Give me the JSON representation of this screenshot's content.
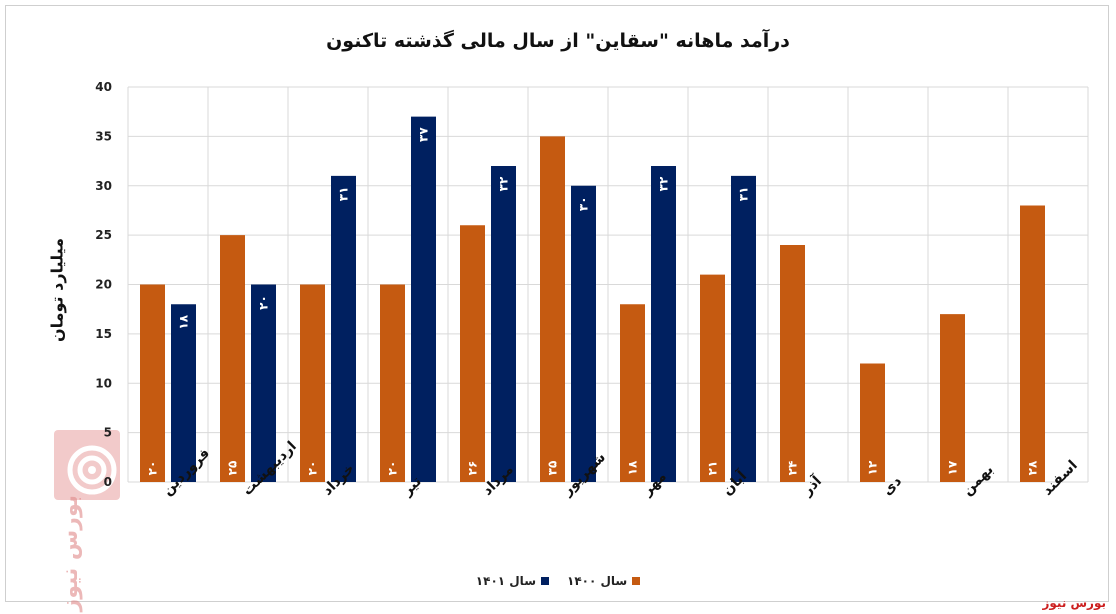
{
  "chart_data": {
    "type": "bar",
    "title": "درآمد ماهانه \"سقاین\" از سال مالی گذشته تاکنون",
    "ylabel": "میلیارد تومان",
    "ylim": [
      0,
      40
    ],
    "yticks": [
      "0",
      "5",
      "10",
      "15",
      "20",
      "25",
      "30",
      "35",
      "40"
    ],
    "categories": [
      "فروردین",
      "اردیبهشت",
      "خرداد",
      "تیر",
      "مرداد",
      "شهریور",
      "مهر",
      "آبان",
      "آذر",
      "دی",
      "بهمن",
      "اسفند"
    ],
    "series": [
      {
        "name": "سال ۱۴۰۰",
        "color": "#C55A11",
        "values": [
          20,
          25,
          20,
          20,
          26,
          35,
          18,
          21,
          24,
          12,
          17,
          28
        ],
        "labels": [
          "۲۰",
          "۲۵",
          "۲۰",
          "۲۰",
          "۲۶",
          "۳۵",
          "۱۸",
          "۲۱",
          "۲۴",
          "۱۲",
          "۱۷",
          "۲۸"
        ]
      },
      {
        "name": "سال ۱۴۰۱",
        "color": "#002060",
        "values": [
          18,
          20,
          31,
          37,
          32,
          30,
          32,
          31,
          null,
          null,
          null,
          null
        ],
        "labels": [
          "۱۸",
          "۲۰",
          "۳۱",
          "۳۷",
          "۳۲",
          "۳۰",
          "۳۲",
          "۳۱",
          "",
          "",
          "",
          ""
        ]
      }
    ],
    "grid": true,
    "legend_position": "bottom"
  },
  "source": "بورس نیوز",
  "watermark": "بورس نیوز"
}
